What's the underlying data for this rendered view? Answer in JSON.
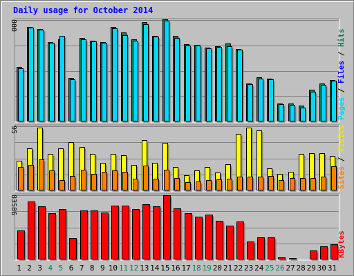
{
  "chart_data": [
    {
      "type": "bar",
      "title": "Daily usage for October 2014",
      "ylabel_parts": [
        {
          "name": "Pages",
          "color": "#00cfff"
        },
        {
          "name": "Files",
          "color": "#0000ff"
        },
        {
          "name": "Hits",
          "color": "#00805c"
        }
      ],
      "ytick": "800",
      "ylim": [
        0,
        880
      ],
      "categories": [
        "1",
        "2",
        "3",
        "4",
        "5",
        "6",
        "7",
        "8",
        "9",
        "10",
        "11",
        "12",
        "13",
        "14",
        "15",
        "16",
        "17",
        "18",
        "19",
        "20",
        "21",
        "22",
        "23",
        "24",
        "25",
        "26",
        "27",
        "28",
        "29",
        "30",
        "31"
      ],
      "series": [
        {
          "name": "Hits",
          "color": "#00805c",
          "values": [
            470,
            822,
            804,
            690,
            713,
            375,
            725,
            700,
            690,
            818,
            775,
            712,
            861,
            745,
            883,
            744,
            668,
            662,
            640,
            655,
            675,
            630,
            332,
            386,
            372,
            158,
            153,
            135,
            276,
            331,
            357
          ]
        },
        {
          "name": "Pages",
          "color": "#00d8ff",
          "values": [
            460,
            814,
            794,
            680,
            745,
            363,
            713,
            697,
            682,
            810,
            751,
            702,
            845,
            735,
            873,
            727,
            660,
            658,
            632,
            644,
            654,
            621,
            324,
            374,
            368,
            150,
            143,
            120,
            260,
            318,
            352
          ]
        }
      ]
    },
    {
      "type": "bar",
      "ylabel_parts": [
        {
          "name": "Sites",
          "color": "#ff8000"
        },
        {
          "name": "Visits",
          "color": "#e8e800"
        }
      ],
      "ytick": "95",
      "ylim": [
        0,
        96
      ],
      "categories": [
        "1",
        "2",
        "3",
        "4",
        "5",
        "6",
        "7",
        "8",
        "9",
        "10",
        "11",
        "12",
        "13",
        "14",
        "15",
        "16",
        "17",
        "18",
        "19",
        "20",
        "21",
        "22",
        "23",
        "24",
        "25",
        "26",
        "27",
        "28",
        "29",
        "30",
        "31"
      ],
      "series": [
        {
          "name": "Visits",
          "color": "#ffff00",
          "values": [
            44,
            63,
            94,
            55,
            63,
            72,
            65,
            55,
            41,
            55,
            53,
            38,
            75,
            41,
            71,
            35,
            23,
            30,
            35,
            27,
            39,
            85,
            94,
            90,
            33,
            25,
            28,
            55,
            56,
            56,
            52
          ]
        },
        {
          "name": "Sites",
          "color": "#ff8000",
          "values": [
            35,
            38,
            46,
            30,
            16,
            22,
            31,
            25,
            28,
            30,
            28,
            18,
            37,
            18,
            31,
            19,
            12,
            13,
            15,
            17,
            18,
            21,
            21,
            21,
            22,
            16,
            19,
            19,
            19,
            21,
            36
          ]
        }
      ]
    },
    {
      "type": "bar",
      "ylabel_parts": [
        {
          "name": "KBytes",
          "color": "#ff0000"
        }
      ],
      "ytick": "83586",
      "ylim": [
        0,
        85000
      ],
      "categories": [
        "1",
        "2",
        "3",
        "4",
        "5",
        "6",
        "7",
        "8",
        "9",
        "10",
        "11",
        "12",
        "13",
        "14",
        "15",
        "16",
        "17",
        "18",
        "19",
        "20",
        "21",
        "22",
        "23",
        "24",
        "25",
        "26",
        "27",
        "28",
        "29",
        "30",
        "31"
      ],
      "series": [
        {
          "name": "KBytes",
          "color": "#ff0000",
          "values": [
            38000,
            77000,
            70000,
            61000,
            67000,
            28000,
            65000,
            65000,
            62000,
            71000,
            71000,
            67000,
            73000,
            70000,
            88000,
            68000,
            61000,
            57000,
            59000,
            51000,
            45000,
            50000,
            24000,
            29000,
            29000,
            3000,
            2000,
            1000,
            12000,
            17000,
            20000
          ]
        }
      ]
    }
  ],
  "x_axis": {
    "labels": [
      "1",
      "2",
      "3",
      "4",
      "5",
      "6",
      "7",
      "8",
      "9",
      "10",
      "11",
      "12",
      "13",
      "14",
      "15",
      "16",
      "17",
      "18",
      "19",
      "20",
      "21",
      "22",
      "23",
      "24",
      "25",
      "26",
      "27",
      "28",
      "29",
      "30",
      "31"
    ],
    "weekend_days": [
      4,
      5,
      11,
      12,
      18,
      19,
      25,
      26
    ],
    "weekday_color": "#000000",
    "weekend_color": "#00805c"
  },
  "colors": {
    "background": "#c0c0c0",
    "title": "#0000ff",
    "grid": "#808080",
    "bar_outline": "#000000"
  }
}
